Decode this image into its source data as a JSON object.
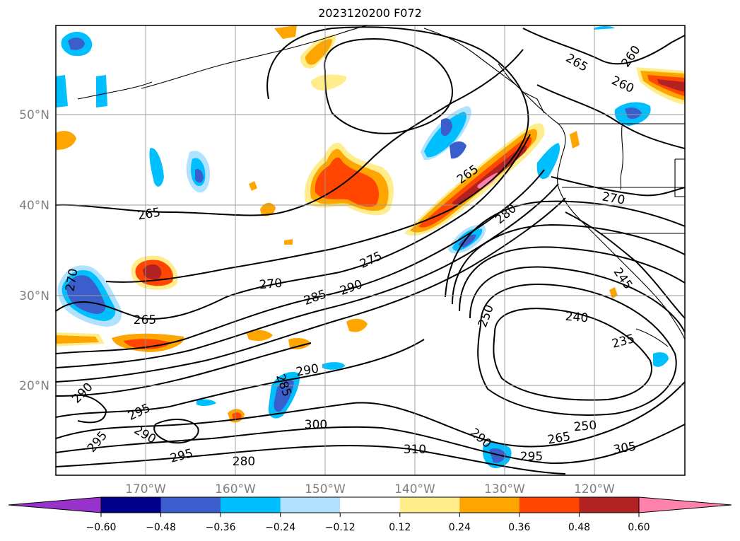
{
  "title": "2023120200 F072",
  "map": {
    "lat_labels": [
      "50°N",
      "40°N",
      "30°N",
      "20°N"
    ],
    "lon_labels": [
      "170°W",
      "160°W",
      "150°W",
      "140°W",
      "130°W",
      "120°W"
    ],
    "axis_label_color": "#808080",
    "contour_labels": [
      {
        "text": "265",
        "pos": [
          211,
          303
        ],
        "rot": -10
      },
      {
        "text": "270",
        "pos": [
          102,
          396
        ],
        "rot": -80
      },
      {
        "text": "265",
        "pos": [
          205,
          453
        ],
        "rot": 0
      },
      {
        "text": "270",
        "pos": [
          383,
          402
        ],
        "rot": -5
      },
      {
        "text": "275",
        "pos": [
          525,
          368
        ],
        "rot": -25
      },
      {
        "text": "285",
        "pos": [
          446,
          421
        ],
        "rot": -20
      },
      {
        "text": "290",
        "pos": [
          497,
          407
        ],
        "rot": -20
      },
      {
        "text": "265",
        "pos": [
          662,
          247
        ],
        "rot": -35
      },
      {
        "text": "280",
        "pos": [
          716,
          303
        ],
        "rot": -40
      },
      {
        "text": "265",
        "pos": [
          816,
          89
        ],
        "rot": 30
      },
      {
        "text": "260",
        "pos": [
          893,
          80
        ],
        "rot": -55
      },
      {
        "text": "260",
        "pos": [
          881,
          120
        ],
        "rot": 25
      },
      {
        "text": "270",
        "pos": [
          868,
          281
        ],
        "rot": 10
      },
      {
        "text": "245",
        "pos": [
          881,
          394
        ],
        "rot": 55
      },
      {
        "text": "250",
        "pos": [
          688,
          447
        ],
        "rot": -70
      },
      {
        "text": "240",
        "pos": [
          816,
          449
        ],
        "rot": 5
      },
      {
        "text": "235",
        "pos": [
          882,
          483
        ],
        "rot": -15
      },
      {
        "text": "290",
        "pos": [
          435,
          524
        ],
        "rot": -10
      },
      {
        "text": "285",
        "pos": [
          401,
          545
        ],
        "rot": 70
      },
      {
        "text": "290",
        "pos": [
          117,
          556
        ],
        "rot": -45
      },
      {
        "text": "295",
        "pos": [
          197,
          583
        ],
        "rot": -25
      },
      {
        "text": "290",
        "pos": [
          205,
          615
        ],
        "rot": 30
      },
      {
        "text": "295",
        "pos": [
          138,
          625
        ],
        "rot": -50
      },
      {
        "text": "295",
        "pos": [
          257,
          645
        ],
        "rot": -15
      },
      {
        "text": "280",
        "pos": [
          345,
          653
        ],
        "rot": 0
      },
      {
        "text": "300",
        "pos": [
          447,
          601
        ],
        "rot": 0
      },
      {
        "text": "310",
        "pos": [
          587,
          636
        ],
        "rot": 0
      },
      {
        "text": "290",
        "pos": [
          680,
          620
        ],
        "rot": 40
      },
      {
        "text": "295",
        "pos": [
          752,
          646
        ],
        "rot": 0
      },
      {
        "text": "265",
        "pos": [
          791,
          620
        ],
        "rot": -10
      },
      {
        "text": "250",
        "pos": [
          828,
          603
        ],
        "rot": -5
      },
      {
        "text": "305",
        "pos": [
          884,
          634
        ],
        "rot": -10
      }
    ]
  },
  "colorbar": {
    "colors": [
      "#9932cc",
      "#00008b",
      "#3a5fcd",
      "#00bfff",
      "#b0e2ff",
      "#ffffff",
      "#ffec8b",
      "#ffa500",
      "#ff4500",
      "#b22222",
      "#ff82ab"
    ],
    "tick_labels": [
      "−0.60",
      "−0.48",
      "−0.36",
      "−0.24",
      "−0.12",
      "0.12",
      "0.24",
      "0.36",
      "0.48",
      "0.60"
    ]
  }
}
